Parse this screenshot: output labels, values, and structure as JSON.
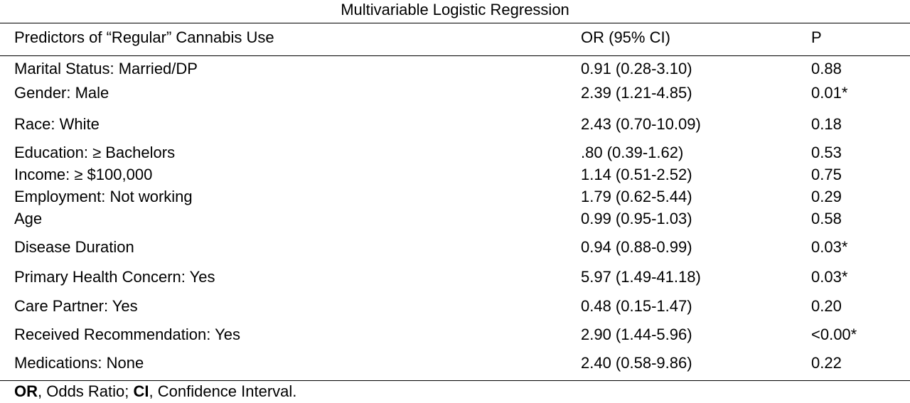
{
  "title": "Multivariable Logistic Regression",
  "columns": {
    "predictor": "Predictors of “Regular” Cannabis Use",
    "or": "OR (95% CI)",
    "p": "P"
  },
  "rows": [
    {
      "predictor": "Marital Status: Married/DP",
      "or": "0.91 (0.28-3.10)",
      "p": "0.88"
    },
    {
      "predictor": "Gender: Male",
      "or": "2.39 (1.21-4.85)",
      "p": "0.01*"
    },
    {
      "predictor": "Race: White",
      "or": "2.43 (0.70-10.09)",
      "p": "0.18"
    },
    {
      "predictor": "Education:  ≥ Bachelors",
      "or": ".80 (0.39-1.62)",
      "p": "0.53"
    },
    {
      "predictor": "Income: ≥ $100,000",
      "or": "1.14 (0.51-2.52)",
      "p": "0.75"
    },
    {
      "predictor": "Employment: Not working",
      "or": "1.79 (0.62-5.44)",
      "p": "0.29"
    },
    {
      "predictor": "Age",
      "or": "0.99 (0.95-1.03)",
      "p": "0.58"
    },
    {
      "predictor": "Disease Duration",
      "or": "0.94 (0.88-0.99)",
      "p": "0.03*"
    },
    {
      "predictor": "Primary Health Concern: Yes",
      "or": "5.97 (1.49-41.18)",
      "p": "0.03*"
    },
    {
      "predictor": "Care Partner: Yes",
      "or": "0.48 (0.15-1.47)",
      "p": "0.20"
    },
    {
      "predictor": "Received Recommendation: Yes",
      "or": "2.90 (1.44-5.96)",
      "p": "<0.00*"
    },
    {
      "predictor": "Medications: None",
      "or": "2.40 (0.58-9.86)",
      "p": "0.22"
    }
  ],
  "footnote": {
    "or_abbr": "OR",
    "or_text": ", Odds Ratio; ",
    "ci_abbr": "CI",
    "ci_text": ", Confidence Interval."
  }
}
